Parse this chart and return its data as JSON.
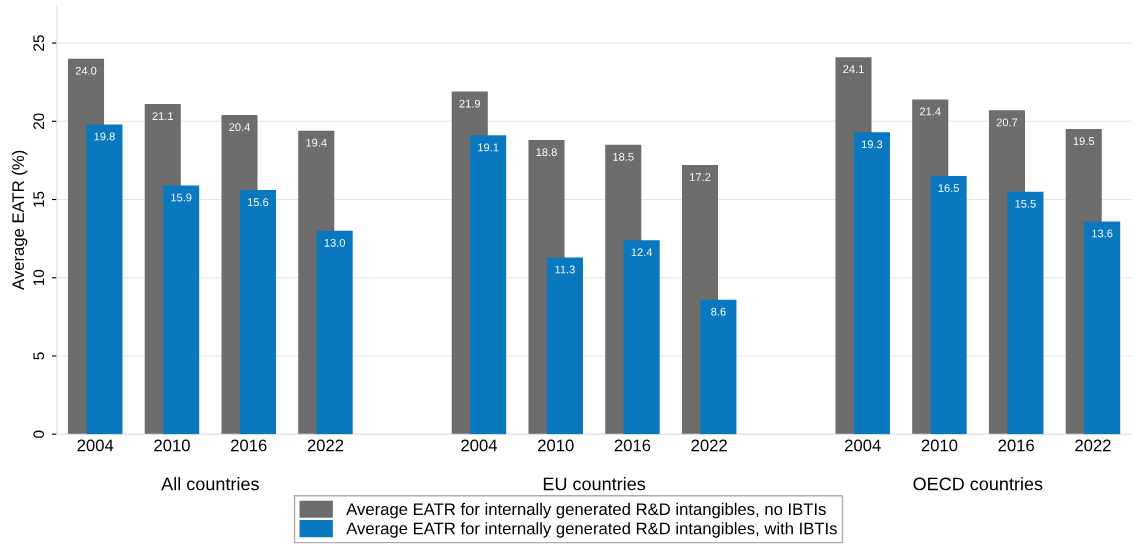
{
  "chart_data": {
    "type": "bar",
    "ylabel": "Average EATR (%)",
    "categories": [
      "2004",
      "2010",
      "2016",
      "2022",
      null,
      "2004",
      "2010",
      "2016",
      "2022",
      null,
      "2004",
      "2010",
      "2016",
      "2022"
    ],
    "annotations": [
      "All countries",
      "EU countries",
      "OECD countries"
    ],
    "series": [
      {
        "name": "Average EATR for internally generated R&D intangibles, no IBTIs",
        "color": "#6d6d6d",
        "values": [
          24.0,
          21.1,
          20.4,
          19.4,
          null,
          21.9,
          18.8,
          18.5,
          17.2,
          null,
          24.1,
          21.4,
          20.7,
          19.5
        ],
        "value_labels": [
          "24.0",
          "21.1",
          "20.4",
          "19.4",
          null,
          "21.9",
          "18.8",
          "18.5",
          "17.2",
          null,
          "24.1",
          "21.4",
          "20.7",
          "19.5"
        ]
      },
      {
        "name": "Average EATR for internally generated R&D intangibles, with IBTIs",
        "color": "#0a78be",
        "values": [
          19.8,
          15.9,
          15.6,
          13.0,
          null,
          19.1,
          11.3,
          12.4,
          8.6,
          null,
          19.3,
          16.5,
          15.5,
          13.6
        ],
        "value_labels": [
          "19.8",
          "15.9",
          "15.6",
          "13.0",
          null,
          "19.1",
          "11.3",
          "12.4",
          "8.6",
          null,
          "19.3",
          "16.5",
          "15.5",
          "13.6"
        ]
      }
    ],
    "ylim": [
      0,
      27.4
    ],
    "yticks": [
      0,
      5,
      10,
      15,
      20,
      25
    ],
    "grid": "y",
    "legend": "bottom"
  }
}
